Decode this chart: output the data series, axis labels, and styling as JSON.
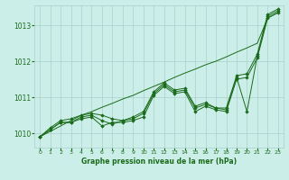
{
  "x": [
    0,
    1,
    2,
    3,
    4,
    5,
    6,
    7,
    8,
    9,
    10,
    11,
    12,
    13,
    14,
    15,
    16,
    17,
    18,
    19,
    20,
    21,
    22,
    23
  ],
  "line_smooth": [
    1009.9,
    1010.05,
    1010.2,
    1010.35,
    1010.5,
    1010.6,
    1010.72,
    1010.83,
    1010.95,
    1011.05,
    1011.18,
    1011.3,
    1011.42,
    1011.55,
    1011.67,
    1011.78,
    1011.9,
    1012.0,
    1012.12,
    1012.25,
    1012.37,
    1012.5,
    1013.2,
    1013.35
  ],
  "line2": [
    1009.9,
    1010.1,
    1010.3,
    1010.3,
    1010.4,
    1010.45,
    1010.2,
    1010.3,
    1010.3,
    1010.35,
    1010.45,
    1011.05,
    1011.3,
    1011.1,
    1011.15,
    1010.6,
    1010.75,
    1010.65,
    1010.6,
    1011.5,
    1011.55,
    1012.1,
    1013.2,
    1013.35
  ],
  "line3": [
    1009.9,
    1010.1,
    1010.3,
    1010.3,
    1010.45,
    1010.5,
    1010.35,
    1010.25,
    1010.35,
    1010.4,
    1010.55,
    1011.1,
    1011.35,
    1011.15,
    1011.2,
    1010.7,
    1010.8,
    1010.7,
    1010.65,
    1011.55,
    1010.6,
    1012.15,
    1013.25,
    1013.4
  ],
  "line4": [
    1009.9,
    1010.15,
    1010.35,
    1010.4,
    1010.5,
    1010.55,
    1010.5,
    1010.4,
    1010.35,
    1010.45,
    1010.6,
    1011.15,
    1011.4,
    1011.2,
    1011.25,
    1010.75,
    1010.85,
    1010.7,
    1010.7,
    1011.6,
    1011.65,
    1012.2,
    1013.3,
    1013.45
  ],
  "line_color": "#1a6b1a",
  "bg_color": "#cceee8",
  "grid_color": "#aacfca",
  "text_color": "#1a6b1a",
  "xlabel": "Graphe pression niveau de la mer (hPa)",
  "ylim": [
    1009.6,
    1013.55
  ],
  "yticks": [
    1010,
    1011,
    1012,
    1013
  ],
  "xticks": [
    0,
    1,
    2,
    3,
    4,
    5,
    6,
    7,
    8,
    9,
    10,
    11,
    12,
    13,
    14,
    15,
    16,
    17,
    18,
    19,
    20,
    21,
    22,
    23
  ],
  "xticklabels": [
    "0",
    "1",
    "2",
    "3",
    "4",
    "5",
    "6",
    "7",
    "8",
    "9",
    "10",
    "11",
    "12",
    "13",
    "14",
    "15",
    "16",
    "17",
    "18",
    "19",
    "20",
    "21",
    "22",
    "23"
  ]
}
